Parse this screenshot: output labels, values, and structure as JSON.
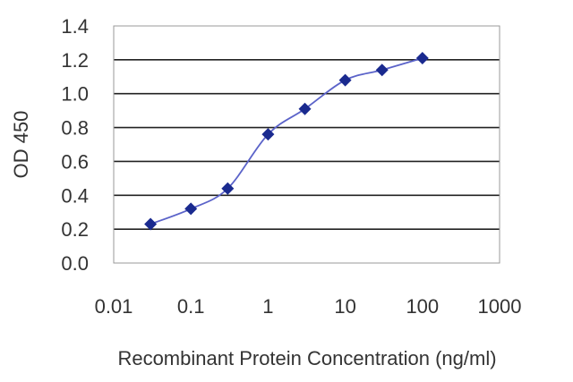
{
  "chart_data": {
    "type": "line",
    "title": "",
    "xlabel": "Recombinant Protein Concentration (ng/ml)",
    "ylabel": "OD 450",
    "x_scale": "log",
    "xlim": [
      0.01,
      1000
    ],
    "ylim": [
      0.0,
      1.4
    ],
    "x_ticks": [
      0.01,
      0.1,
      1,
      10,
      100,
      1000
    ],
    "x_tick_labels": [
      "0.01",
      "0.1",
      "1",
      "10",
      "100",
      "1000"
    ],
    "y_ticks": [
      0.0,
      0.2,
      0.4,
      0.6,
      0.8,
      1.0,
      1.2,
      1.4
    ],
    "y_tick_labels": [
      "0.0",
      "0.2",
      "0.4",
      "0.6",
      "0.8",
      "1.0",
      "1.2",
      "1.4"
    ],
    "grid": "horizontal",
    "series": [
      {
        "x": [
          0.03,
          0.1,
          0.3,
          1,
          3,
          10,
          30,
          100
        ],
        "y": [
          0.23,
          0.32,
          0.44,
          0.76,
          0.91,
          1.08,
          1.14,
          1.21
        ]
      }
    ],
    "colors": {
      "line": "#5b63c9",
      "marker": "#1a2a8f",
      "grid": "#222222",
      "frame": "#999999"
    }
  }
}
